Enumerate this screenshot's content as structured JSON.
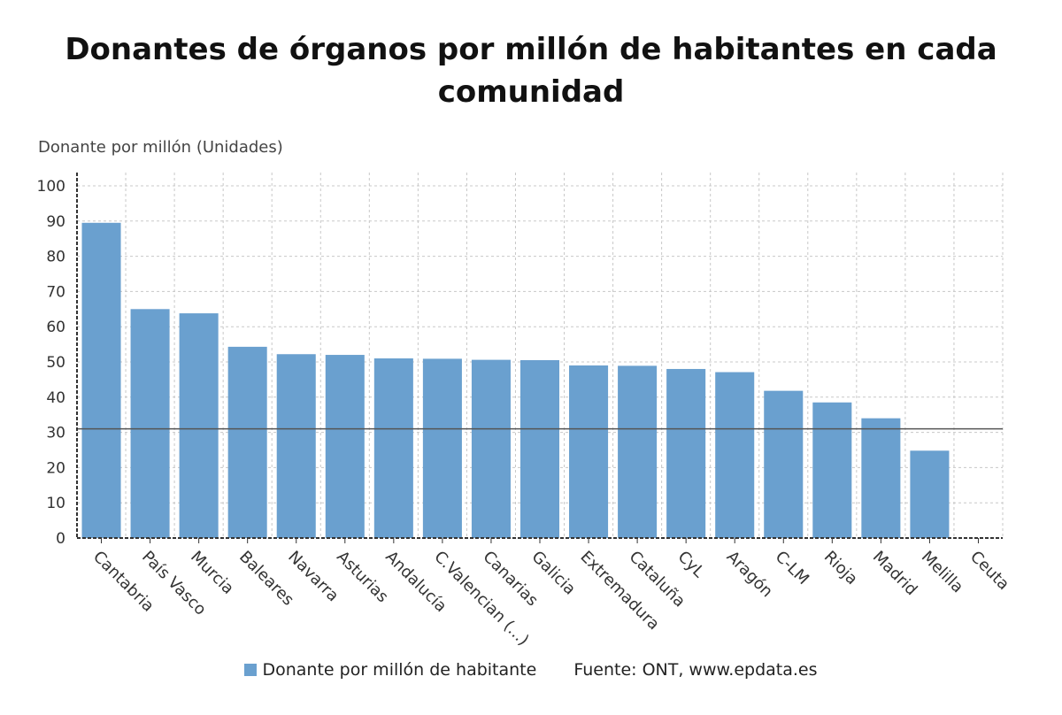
{
  "chart_data": {
    "type": "bar",
    "title": "Donantes de órganos por millón de habitantes en cada comunidad",
    "ylabel": "Donante por millón (Unidades)",
    "xlabel": "",
    "categories": [
      "Cantabria",
      "País Vasco",
      "Murcia",
      "Baleares",
      "Navarra",
      "Asturias",
      "Andalucía",
      "C.Valencian (...)",
      "Canarias",
      "Galicia",
      "Extremadura",
      "Cataluña",
      "CyL",
      "Aragón",
      "C-LM",
      "Rioja",
      "Madrid",
      "Melilla",
      "Ceuta"
    ],
    "series": [
      {
        "name": "Donante por millón de habitante",
        "values": [
          89.5,
          65,
          63.8,
          54.3,
          52.2,
          52,
          51,
          50.9,
          50.6,
          50.5,
          49,
          48.9,
          48,
          47.1,
          41.8,
          38.5,
          34,
          24.8,
          0
        ]
      }
    ],
    "ylim": [
      0,
      100
    ],
    "yticks": [
      0,
      10,
      20,
      30,
      40,
      50,
      60,
      70,
      80,
      90,
      100
    ],
    "reference_line": 31,
    "grid": true,
    "legend_position": "bottom",
    "colors": {
      "bar": "#6aa0cf",
      "grid": "#c8c8c8",
      "axis": "#333333",
      "reference": "#555555"
    }
  },
  "legend": {
    "series_label": "Donante por millón de habitante",
    "source": "Fuente: ONT, www.epdata.es"
  }
}
